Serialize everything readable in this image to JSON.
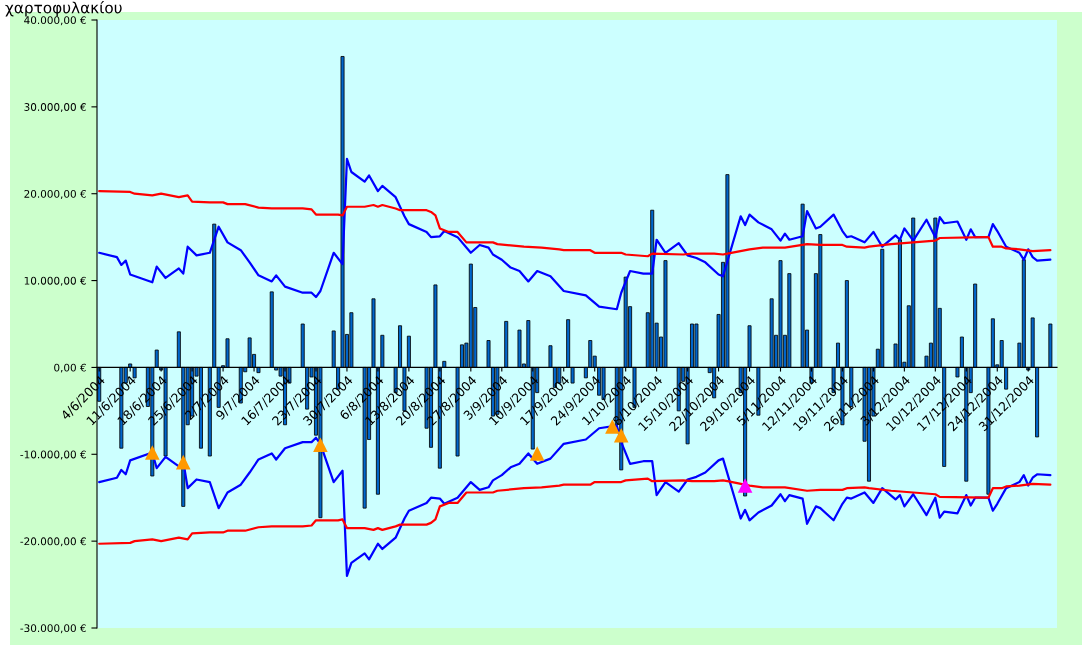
{
  "chart_data": {
    "type": "bar",
    "title": "χαρτοφυλακίου",
    "xlim": [
      "2004-06-03T12:00",
      "2005-01-06T12:00"
    ],
    "xticks": [
      {
        "value": "2004-06-04",
        "label": "4/6/2004"
      },
      {
        "value": "2004-06-11",
        "label": "11/6/2004"
      },
      {
        "value": "2004-06-18",
        "label": "18/6/2004"
      },
      {
        "value": "2004-06-25",
        "label": "25/6/2004"
      },
      {
        "value": "2004-07-02",
        "label": "2/7/2004"
      },
      {
        "value": "2004-07-09",
        "label": "9/7/2004"
      },
      {
        "value": "2004-07-16",
        "label": "16/7/2004"
      },
      {
        "value": "2004-07-23",
        "label": "23/7/2004"
      },
      {
        "value": "2004-07-30",
        "label": "30/7/2004"
      },
      {
        "value": "2004-08-06",
        "label": "6/8/2004"
      },
      {
        "value": "2004-08-13",
        "label": "13/8/2004"
      },
      {
        "value": "2004-08-20",
        "label": "20/8/2004"
      },
      {
        "value": "2004-08-27",
        "label": "27/8/2004"
      },
      {
        "value": "2004-09-03",
        "label": "3/9/2004"
      },
      {
        "value": "2004-09-10",
        "label": "10/9/2004"
      },
      {
        "value": "2004-09-17",
        "label": "17/9/2004"
      },
      {
        "value": "2004-09-24",
        "label": "24/9/2004"
      },
      {
        "value": "2004-10-01",
        "label": "1/10/2004"
      },
      {
        "value": "2004-10-08",
        "label": "8/10/2004"
      },
      {
        "value": "2004-10-15",
        "label": "15/10/2004"
      },
      {
        "value": "2004-10-22",
        "label": "22/10/2004"
      },
      {
        "value": "2004-10-29",
        "label": "29/10/2004"
      },
      {
        "value": "2004-11-05",
        "label": "5/11/2004"
      },
      {
        "value": "2004-11-12",
        "label": "12/11/2004"
      },
      {
        "value": "2004-11-19",
        "label": "19/11/2004"
      },
      {
        "value": "2004-11-26",
        "label": "26/11/2004"
      },
      {
        "value": "2004-12-03",
        "label": "3/12/2004"
      },
      {
        "value": "2004-12-10",
        "label": "10/12/2004"
      },
      {
        "value": "2004-12-17",
        "label": "17/12/2004"
      },
      {
        "value": "2004-12-24",
        "label": "24/12/2004"
      },
      {
        "value": "2004-12-31",
        "label": "31/12/2004"
      }
    ],
    "ylim": [
      -30000,
      40000
    ],
    "yticks": [
      {
        "value": -30000,
        "label": "-30.000,00 €"
      },
      {
        "value": -20000,
        "label": "-20.000,00 €"
      },
      {
        "value": -10000,
        "label": "-10.000,00 €"
      },
      {
        "value": 0,
        "label": "0,00 €"
      },
      {
        "value": 10000,
        "label": "10.000,00 €"
      },
      {
        "value": 20000,
        "label": "20.000,00 €"
      },
      {
        "value": 30000,
        "label": "30.000,00 €"
      },
      {
        "value": 40000,
        "label": "40.000,00 €"
      }
    ],
    "series": [
      {
        "color": "#0066cc",
        "x": [
          "2004-06-04",
          "2004-06-09",
          "2004-06-10",
          "2004-06-11",
          "2004-06-12",
          "2004-06-15",
          "2004-06-16",
          "2004-06-17",
          "2004-06-18",
          "2004-06-19",
          "2004-06-22",
          "2004-06-23",
          "2004-06-24",
          "2004-06-25",
          "2004-06-26",
          "2004-06-27",
          "2004-06-29",
          "2004-06-30",
          "2004-07-01",
          "2004-07-02",
          "2004-07-03",
          "2004-07-06",
          "2004-07-07",
          "2004-07-08",
          "2004-07-09",
          "2004-07-10",
          "2004-07-13",
          "2004-07-14",
          "2004-07-15",
          "2004-07-16",
          "2004-07-17",
          "2004-07-20",
          "2004-07-21",
          "2004-07-22",
          "2004-07-23",
          "2004-07-24",
          "2004-07-27",
          "2004-07-28",
          "2004-07-29",
          "2004-07-30",
          "2004-07-31",
          "2004-08-03",
          "2004-08-04",
          "2004-08-05",
          "2004-08-06",
          "2004-08-07",
          "2004-08-10",
          "2004-08-11",
          "2004-08-12",
          "2004-08-13",
          "2004-08-17",
          "2004-08-18",
          "2004-08-19",
          "2004-08-20",
          "2004-08-21",
          "2004-08-24",
          "2004-08-25",
          "2004-08-26",
          "2004-08-27",
          "2004-08-28",
          "2004-08-31",
          "2004-09-01",
          "2004-09-02",
          "2004-09-04",
          "2004-09-07",
          "2004-09-08",
          "2004-09-09",
          "2004-09-10",
          "2004-09-11",
          "2004-09-14",
          "2004-09-15",
          "2004-09-16",
          "2004-09-18",
          "2004-09-19",
          "2004-09-22",
          "2004-09-23",
          "2004-09-24",
          "2004-09-25",
          "2004-09-26",
          "2004-09-29",
          "2004-09-30",
          "2004-10-01",
          "2004-10-02",
          "2004-10-03",
          "2004-10-06",
          "2004-10-07",
          "2004-10-08",
          "2004-10-09",
          "2004-10-10",
          "2004-10-13",
          "2004-10-14",
          "2004-10-15",
          "2004-10-16",
          "2004-10-17",
          "2004-10-20",
          "2004-10-21",
          "2004-10-22",
          "2004-10-23",
          "2004-10-24",
          "2004-10-27",
          "2004-10-28",
          "2004-10-29",
          "2004-10-31",
          "2004-11-03",
          "2004-11-04",
          "2004-11-05",
          "2004-11-06",
          "2004-11-07",
          "2004-11-10",
          "2004-11-11",
          "2004-11-12",
          "2004-11-13",
          "2004-11-14",
          "2004-11-17",
          "2004-11-18",
          "2004-11-19",
          "2004-11-20",
          "2004-11-21",
          "2004-11-24",
          "2004-11-25",
          "2004-11-26",
          "2004-11-27",
          "2004-11-28",
          "2004-12-01",
          "2004-12-02",
          "2004-12-03",
          "2004-12-04",
          "2004-12-05",
          "2004-12-08",
          "2004-12-09",
          "2004-12-10",
          "2004-12-11",
          "2004-12-12",
          "2004-12-15",
          "2004-12-16",
          "2004-12-17",
          "2004-12-18",
          "2004-12-19",
          "2004-12-22",
          "2004-12-23",
          "2004-12-24",
          "2004-12-25",
          "2004-12-26",
          "2004-12-29",
          "2004-12-30",
          "2004-12-31",
          "2005-01-01",
          "2005-01-02",
          "2005-01-05"
        ],
        "values": [
          -3900,
          -9300,
          -1800,
          400,
          -1200,
          -4500,
          -12500,
          2000,
          -300,
          -10200,
          4100,
          -16000,
          -6600,
          -5600,
          -1000,
          -9300,
          -10200,
          16500,
          -4600,
          200,
          3300,
          -4100,
          -500,
          3400,
          1500,
          -600,
          8700,
          -300,
          -1000,
          -6600,
          -1800,
          5000,
          -4800,
          -1100,
          -7800,
          -17300,
          4200,
          -2500,
          35800,
          3800,
          6300,
          -16200,
          -8300,
          7900,
          -14600,
          3700,
          -2900,
          4800,
          -5000,
          3600,
          -7000,
          -9200,
          9500,
          -11600,
          700,
          -10200,
          2600,
          2800,
          11900,
          6900,
          3100,
          -5600,
          -5400,
          5300,
          4300,
          400,
          5400,
          -9400,
          -2900,
          2500,
          -2300,
          -1800,
          5500,
          -1800,
          -1200,
          3100,
          1300,
          -3200,
          -3700,
          -6600,
          -11800,
          10400,
          7000,
          -4600,
          6300,
          18100,
          5100,
          3500,
          12300,
          -5000,
          -1600,
          -8800,
          5000,
          5000,
          -600,
          -3500,
          6100,
          12100,
          22200,
          -2900,
          -14800,
          4800,
          -5500,
          7900,
          3700,
          12300,
          3700,
          10800,
          18800,
          4300,
          -1800,
          10800,
          15300,
          -2900,
          2800,
          -6600,
          10000,
          -4500,
          -8500,
          -13100,
          -5600,
          2100,
          13600,
          2700,
          14700,
          600,
          7100,
          17200,
          1300,
          2800,
          17200,
          6800,
          -11400,
          -1100,
          3500,
          -13100,
          -2900,
          9600,
          -14600,
          5600,
          300,
          3100,
          -2500,
          2800,
          12400,
          -300,
          5700,
          -8000,
          5000
        ]
      },
      {
        "type": "line",
        "color": "#0000ff",
        "x": [
          "2004-06-04",
          "2004-06-08",
          "2004-06-09",
          "2004-06-10",
          "2004-06-11",
          "2004-06-16",
          "2004-06-17",
          "2004-06-19",
          "2004-06-22",
          "2004-06-23",
          "2004-06-24",
          "2004-06-26",
          "2004-06-29",
          "2004-07-01",
          "2004-07-03",
          "2004-07-06",
          "2004-07-08",
          "2004-07-10",
          "2004-07-13",
          "2004-07-14",
          "2004-07-16",
          "2004-07-20",
          "2004-07-22",
          "2004-07-23",
          "2004-07-24",
          "2004-07-27",
          "2004-07-29",
          "2004-07-30",
          "2004-07-31",
          "2004-08-03",
          "2004-08-04",
          "2004-08-06",
          "2004-08-07",
          "2004-08-10",
          "2004-08-12",
          "2004-08-13",
          "2004-08-17",
          "2004-08-18",
          "2004-08-20",
          "2004-08-21",
          "2004-08-24",
          "2004-08-27",
          "2004-08-29",
          "2004-08-31",
          "2004-09-01",
          "2004-09-03",
          "2004-09-05",
          "2004-09-07",
          "2004-09-09",
          "2004-09-11",
          "2004-09-14",
          "2004-09-17",
          "2004-09-22",
          "2004-09-25",
          "2004-09-29",
          "2004-09-30",
          "2004-10-02",
          "2004-10-05",
          "2004-10-07",
          "2004-10-08",
          "2004-10-10",
          "2004-10-13",
          "2004-10-15",
          "2004-10-17",
          "2004-10-19",
          "2004-10-22",
          "2004-10-23",
          "2004-10-27",
          "2004-10-28",
          "2004-10-29",
          "2004-10-31",
          "2004-11-03",
          "2004-11-05",
          "2004-11-06",
          "2004-11-07",
          "2004-11-10",
          "2004-11-11",
          "2004-11-13",
          "2004-11-14",
          "2004-11-17",
          "2004-11-19",
          "2004-11-20",
          "2004-11-21",
          "2004-11-24",
          "2004-11-26",
          "2004-11-28",
          "2004-12-01",
          "2004-12-02",
          "2004-12-03",
          "2004-12-05",
          "2004-12-08",
          "2004-12-10",
          "2004-12-11",
          "2004-12-12",
          "2004-12-15",
          "2004-12-17",
          "2004-12-18",
          "2004-12-19",
          "2004-12-22",
          "2004-12-23",
          "2004-12-24",
          "2004-12-26",
          "2004-12-29",
          "2004-12-30",
          "2004-12-31",
          "2005-01-01",
          "2005-01-02",
          "2005-01-05"
        ],
        "values": [
          13200,
          12700,
          11800,
          12300,
          10700,
          9800,
          11600,
          10300,
          11400,
          10800,
          13900,
          12900,
          13200,
          16200,
          14400,
          13500,
          12100,
          10600,
          9900,
          10600,
          9300,
          8600,
          8600,
          8100,
          8800,
          13200,
          11900,
          24000,
          22500,
          21400,
          22100,
          20300,
          20900,
          19600,
          17400,
          16500,
          15600,
          15000,
          15100,
          15700,
          15000,
          13200,
          14100,
          13800,
          13000,
          12400,
          11500,
          11100,
          9900,
          11100,
          10500,
          8800,
          8300,
          7000,
          6700,
          8600,
          11100,
          10800,
          10800,
          14700,
          13200,
          14300,
          12900,
          12600,
          12100,
          10700,
          10500,
          17400,
          16400,
          17600,
          16700,
          15900,
          14600,
          15400,
          14700,
          15100,
          18000,
          16000,
          16200,
          17600,
          15700,
          15000,
          15100,
          14400,
          15600,
          13900,
          15200,
          14700,
          16000,
          14600,
          17000,
          15000,
          17300,
          16600,
          16800,
          14700,
          15900,
          15000,
          15000,
          16500,
          15700,
          13900,
          13200,
          12400,
          13600,
          12700,
          12300,
          12400
        ]
      },
      {
        "type": "line",
        "color": "#0000ff",
        "x": [
          "2004-06-04",
          "2004-06-08",
          "2004-06-09",
          "2004-06-10",
          "2004-06-11",
          "2004-06-16",
          "2004-06-17",
          "2004-06-19",
          "2004-06-22",
          "2004-06-23",
          "2004-06-24",
          "2004-06-26",
          "2004-06-29",
          "2004-07-01",
          "2004-07-03",
          "2004-07-06",
          "2004-07-08",
          "2004-07-10",
          "2004-07-13",
          "2004-07-14",
          "2004-07-16",
          "2004-07-20",
          "2004-07-22",
          "2004-07-23",
          "2004-07-24",
          "2004-07-27",
          "2004-07-29",
          "2004-07-30",
          "2004-07-31",
          "2004-08-03",
          "2004-08-04",
          "2004-08-06",
          "2004-08-07",
          "2004-08-10",
          "2004-08-12",
          "2004-08-13",
          "2004-08-17",
          "2004-08-18",
          "2004-08-20",
          "2004-08-21",
          "2004-08-24",
          "2004-08-27",
          "2004-08-29",
          "2004-08-31",
          "2004-09-01",
          "2004-09-03",
          "2004-09-05",
          "2004-09-07",
          "2004-09-09",
          "2004-09-11",
          "2004-09-14",
          "2004-09-17",
          "2004-09-22",
          "2004-09-25",
          "2004-09-29",
          "2004-09-30",
          "2004-10-02",
          "2004-10-05",
          "2004-10-07",
          "2004-10-08",
          "2004-10-10",
          "2004-10-13",
          "2004-10-15",
          "2004-10-17",
          "2004-10-19",
          "2004-10-22",
          "2004-10-23",
          "2004-10-27",
          "2004-10-28",
          "2004-10-29",
          "2004-10-31",
          "2004-11-03",
          "2004-11-05",
          "2004-11-06",
          "2004-11-07",
          "2004-11-10",
          "2004-11-11",
          "2004-11-13",
          "2004-11-14",
          "2004-11-17",
          "2004-11-19",
          "2004-11-20",
          "2004-11-21",
          "2004-11-24",
          "2004-11-26",
          "2004-11-28",
          "2004-12-01",
          "2004-12-02",
          "2004-12-03",
          "2004-12-05",
          "2004-12-08",
          "2004-12-10",
          "2004-12-11",
          "2004-12-12",
          "2004-12-15",
          "2004-12-17",
          "2004-12-18",
          "2004-12-19",
          "2004-12-22",
          "2004-12-23",
          "2004-12-24",
          "2004-12-26",
          "2004-12-29",
          "2004-12-30",
          "2004-12-31",
          "2005-01-01",
          "2005-01-02",
          "2005-01-05"
        ],
        "values": [
          -13200,
          -12700,
          -11800,
          -12300,
          -10700,
          -9800,
          -11600,
          -10300,
          -11400,
          -10800,
          -13900,
          -12900,
          -13200,
          -16200,
          -14400,
          -13500,
          -12100,
          -10600,
          -9900,
          -10600,
          -9300,
          -8600,
          -8600,
          -8100,
          -8800,
          -13200,
          -11900,
          -24000,
          -22500,
          -21400,
          -22100,
          -20300,
          -20900,
          -19600,
          -17400,
          -16500,
          -15600,
          -15000,
          -15100,
          -15700,
          -15000,
          -13200,
          -14100,
          -13800,
          -13000,
          -12400,
          -11500,
          -11100,
          -9900,
          -11100,
          -10500,
          -8800,
          -8300,
          -7000,
          -6700,
          -8600,
          -11100,
          -10800,
          -10800,
          -14700,
          -13200,
          -14300,
          -12900,
          -12600,
          -12100,
          -10700,
          -10500,
          -17400,
          -16400,
          -17600,
          -16700,
          -15900,
          -14600,
          -15400,
          -14700,
          -15100,
          -18000,
          -16000,
          -16200,
          -17600,
          -15700,
          -15000,
          -15100,
          -14400,
          -15600,
          -13900,
          -15200,
          -14700,
          -16000,
          -14600,
          -17000,
          -15000,
          -17300,
          -16600,
          -16800,
          -14700,
          -15900,
          -15000,
          -15000,
          -16500,
          -15700,
          -13900,
          -13200,
          -12400,
          -13600,
          -12700,
          -12300,
          -12400
        ]
      },
      {
        "type": "line",
        "color": "#ff0000",
        "x": [
          "2004-06-04",
          "2004-06-11",
          "2004-06-12",
          "2004-06-16",
          "2004-06-18",
          "2004-06-22",
          "2004-06-24",
          "2004-06-25",
          "2004-06-29",
          "2004-07-02",
          "2004-07-03",
          "2004-07-07",
          "2004-07-10",
          "2004-07-13",
          "2004-07-20",
          "2004-07-22",
          "2004-07-23",
          "2004-07-28",
          "2004-07-29",
          "2004-07-30",
          "2004-08-03",
          "2004-08-05",
          "2004-08-06",
          "2004-08-07",
          "2004-08-10",
          "2004-08-11",
          "2004-08-17",
          "2004-08-18",
          "2004-08-19",
          "2004-08-20",
          "2004-08-22",
          "2004-08-24",
          "2004-08-26",
          "2004-09-01",
          "2004-09-02",
          "2004-09-08",
          "2004-09-12",
          "2004-09-16",
          "2004-09-17",
          "2004-09-23",
          "2004-09-24",
          "2004-09-30",
          "2004-10-01",
          "2004-10-06",
          "2004-10-07",
          "2004-10-14",
          "2004-10-16",
          "2004-10-21",
          "2004-10-23",
          "2004-10-24",
          "2004-10-29",
          "2004-11-01",
          "2004-11-06",
          "2004-11-11",
          "2004-11-14",
          "2004-11-19",
          "2004-11-20",
          "2004-11-24",
          "2004-11-25",
          "2004-11-30",
          "2004-12-05",
          "2004-12-10",
          "2004-12-11",
          "2004-12-21",
          "2004-12-22",
          "2004-12-23",
          "2004-12-25",
          "2004-12-26",
          "2004-12-29",
          "2005-01-01",
          "2005-01-05"
        ],
        "values": [
          20300,
          20200,
          20000,
          19800,
          20000,
          19600,
          19800,
          19100,
          19000,
          19000,
          18800,
          18800,
          18400,
          18300,
          18300,
          18200,
          17600,
          17600,
          17500,
          18500,
          18500,
          18700,
          18500,
          18700,
          18300,
          18100,
          18100,
          17900,
          17500,
          16000,
          15600,
          15600,
          14400,
          14400,
          14200,
          13900,
          13800,
          13600,
          13500,
          13500,
          13200,
          13200,
          13000,
          12800,
          13100,
          13000,
          13100,
          13100,
          13000,
          13100,
          13600,
          13800,
          13800,
          14200,
          14100,
          14100,
          13900,
          13800,
          13900,
          14200,
          14400,
          14600,
          14900,
          15000,
          15000,
          13900,
          13900,
          13700,
          13600,
          13400,
          13500
        ]
      },
      {
        "type": "line",
        "color": "#ff0000",
        "x": [
          "2004-06-04",
          "2004-06-11",
          "2004-06-12",
          "2004-06-16",
          "2004-06-18",
          "2004-06-22",
          "2004-06-24",
          "2004-06-25",
          "2004-06-29",
          "2004-07-02",
          "2004-07-03",
          "2004-07-07",
          "2004-07-10",
          "2004-07-13",
          "2004-07-20",
          "2004-07-22",
          "2004-07-23",
          "2004-07-28",
          "2004-07-29",
          "2004-07-30",
          "2004-08-03",
          "2004-08-05",
          "2004-08-06",
          "2004-08-07",
          "2004-08-10",
          "2004-08-11",
          "2004-08-17",
          "2004-08-18",
          "2004-08-19",
          "2004-08-20",
          "2004-08-22",
          "2004-08-24",
          "2004-08-26",
          "2004-09-01",
          "2004-09-02",
          "2004-09-08",
          "2004-09-12",
          "2004-09-16",
          "2004-09-17",
          "2004-09-23",
          "2004-09-24",
          "2004-09-30",
          "2004-10-01",
          "2004-10-06",
          "2004-10-07",
          "2004-10-14",
          "2004-10-16",
          "2004-10-21",
          "2004-10-23",
          "2004-10-24",
          "2004-10-29",
          "2004-11-01",
          "2004-11-06",
          "2004-11-11",
          "2004-11-14",
          "2004-11-19",
          "2004-11-20",
          "2004-11-24",
          "2004-11-25",
          "2004-11-30",
          "2004-12-05",
          "2004-12-10",
          "2004-12-11",
          "2004-12-21",
          "2004-12-22",
          "2004-12-23",
          "2004-12-25",
          "2004-12-26",
          "2004-12-29",
          "2005-01-01",
          "2005-01-05"
        ],
        "values": [
          -20300,
          -20200,
          -20000,
          -19800,
          -20000,
          -19600,
          -19800,
          -19100,
          -19000,
          -19000,
          -18800,
          -18800,
          -18400,
          -18300,
          -18300,
          -18200,
          -17600,
          -17600,
          -17500,
          -18500,
          -18500,
          -18700,
          -18500,
          -18700,
          -18300,
          -18100,
          -18100,
          -17900,
          -17500,
          -16000,
          -15600,
          -15600,
          -14400,
          -14400,
          -14200,
          -13900,
          -13800,
          -13600,
          -13500,
          -13500,
          -13200,
          -13200,
          -13000,
          -12800,
          -13100,
          -13000,
          -13100,
          -13100,
          -13000,
          -13100,
          -13600,
          -13800,
          -13800,
          -14200,
          -14100,
          -14100,
          -13900,
          -13800,
          -13900,
          -14200,
          -14400,
          -14600,
          -14900,
          -15000,
          -15000,
          -13900,
          -13900,
          -13700,
          -13600,
          -13400,
          -13500
        ]
      },
      {
        "type": "scatter",
        "marker": "triangle",
        "color": "#ff9900",
        "x": [
          "2004-06-16",
          "2004-06-23",
          "2004-07-24",
          "2004-09-11",
          "2004-09-28",
          "2004-09-30"
        ],
        "values": [
          -9800,
          -10900,
          -8900,
          -9900,
          -6800,
          -7800
        ]
      },
      {
        "type": "scatter",
        "marker": "triangle",
        "color": "#ff00ff",
        "x": [
          "2004-10-28"
        ],
        "values": [
          -13600
        ]
      }
    ]
  }
}
